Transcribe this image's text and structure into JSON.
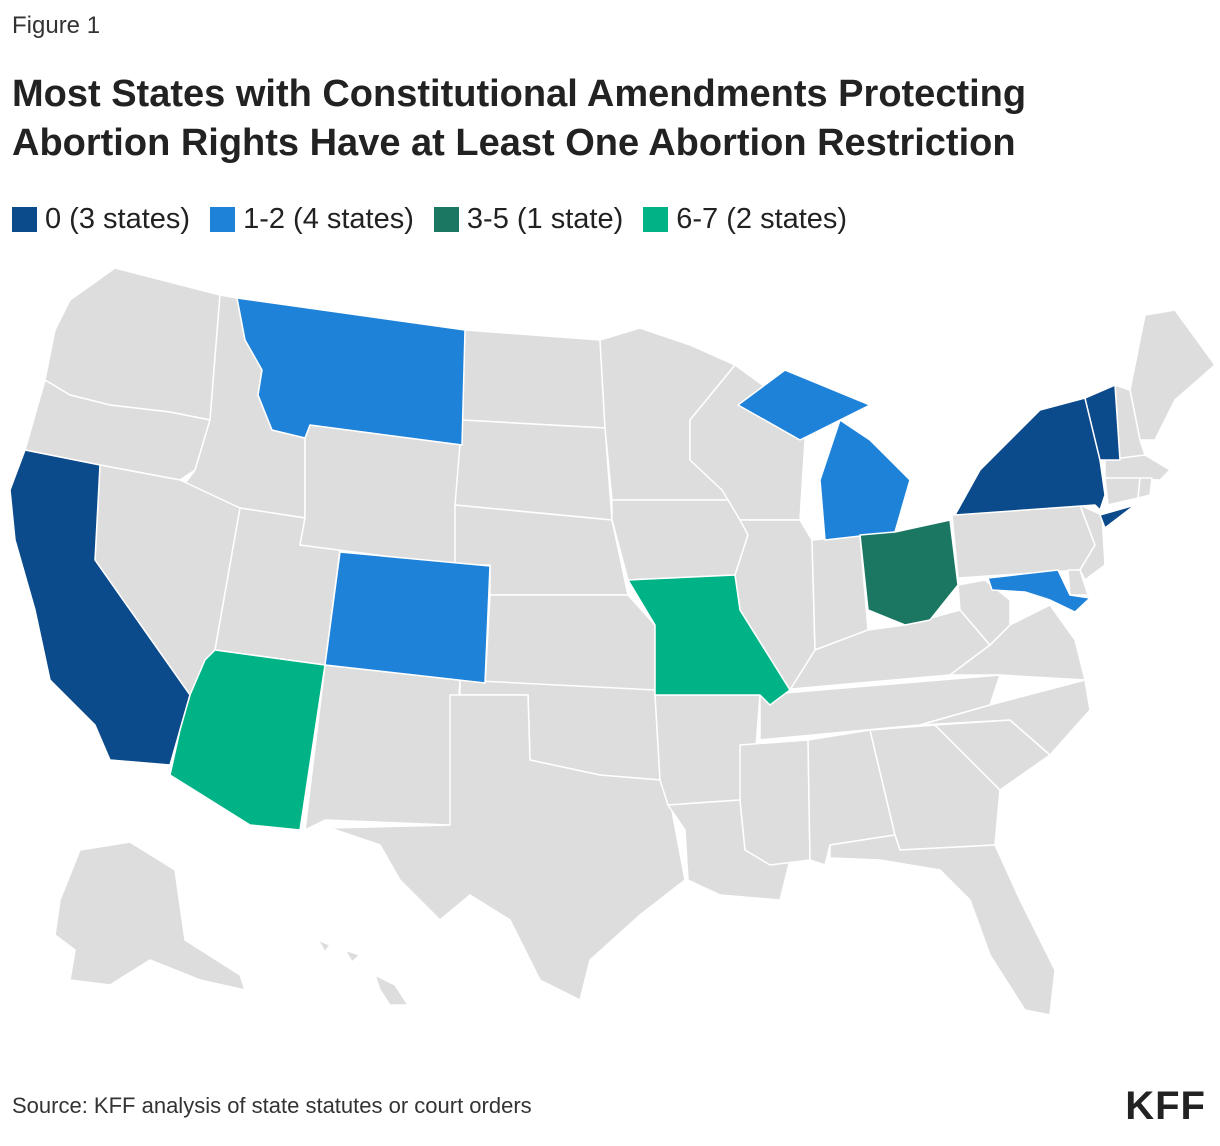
{
  "figure_label": "Figure 1",
  "title": "Most States with Constitutional Amendments Protecting Abortion Rights Have at Least One Abortion Restriction",
  "source": "Source: KFF analysis of state statutes or court orders",
  "logo": "KFF",
  "colors": {
    "no_data": "#dddddd",
    "border": "#ffffff"
  },
  "chart_data": {
    "type": "choropleth-map",
    "region": "United States",
    "legend_placement": "top",
    "legend": [
      {
        "label": "0 (3 states)",
        "color": "#0b4a8b"
      },
      {
        "label": "1-2 (4 states)",
        "color": "#1f82d9"
      },
      {
        "label": "3-5 (1 state)",
        "color": "#1b7762"
      },
      {
        "label": "6-7 (2 states)",
        "color": "#00b386"
      }
    ],
    "states": [
      {
        "state": "California",
        "category": "0"
      },
      {
        "state": "New York",
        "category": "0"
      },
      {
        "state": "Vermont",
        "category": "0"
      },
      {
        "state": "Montana",
        "category": "1-2"
      },
      {
        "state": "Colorado",
        "category": "1-2"
      },
      {
        "state": "Michigan",
        "category": "1-2"
      },
      {
        "state": "Maryland",
        "category": "1-2"
      },
      {
        "state": "Ohio",
        "category": "3-5"
      },
      {
        "state": "Arizona",
        "category": "6-7"
      },
      {
        "state": "Missouri",
        "category": "6-7"
      }
    ]
  }
}
